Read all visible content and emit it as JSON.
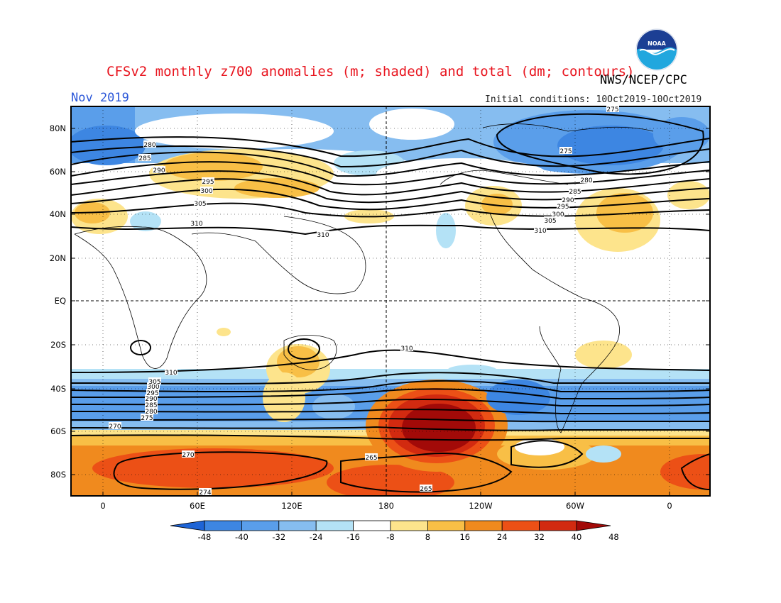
{
  "header": {
    "title": "CFSv2 monthly z700 anomalies (m; shaded) and total (dm; contours)",
    "agency": "NWS/NCEP/CPC",
    "valid_month": "Nov 2019",
    "initial_conditions": "Initial conditions: 10Oct2019-10Oct2019",
    "logo_text": "NOAA"
  },
  "map": {
    "lat_labels": [
      "80N",
      "60N",
      "40N",
      "20N",
      "EQ",
      "20S",
      "40S",
      "60S",
      "80S"
    ],
    "lon_labels": [
      "0",
      "60E",
      "120E",
      "180",
      "120W",
      "60W",
      "0"
    ],
    "contour_labels": [
      "275",
      "275",
      "280",
      "280",
      "285",
      "285",
      "290",
      "290",
      "295",
      "295",
      "300",
      "300",
      "305",
      "305",
      "310",
      "310",
      "310",
      "310",
      "265",
      "265",
      "270",
      "270",
      "274",
      "275",
      "280",
      "285",
      "290",
      "295",
      "300",
      "305",
      "310"
    ]
  },
  "colorbar": {
    "ticks": [
      "-48",
      "-40",
      "-32",
      "-24",
      "-16",
      "-8",
      "8",
      "16",
      "24",
      "32",
      "40",
      "48"
    ],
    "colors": [
      "#1e64d6",
      "#3d86e2",
      "#5a9eea",
      "#86bdf0",
      "#b4e2f6",
      "#ffffff",
      "#fde48c",
      "#f8bf46",
      "#f08a1e",
      "#ec5016",
      "#d22a10",
      "#a20a08"
    ]
  }
}
